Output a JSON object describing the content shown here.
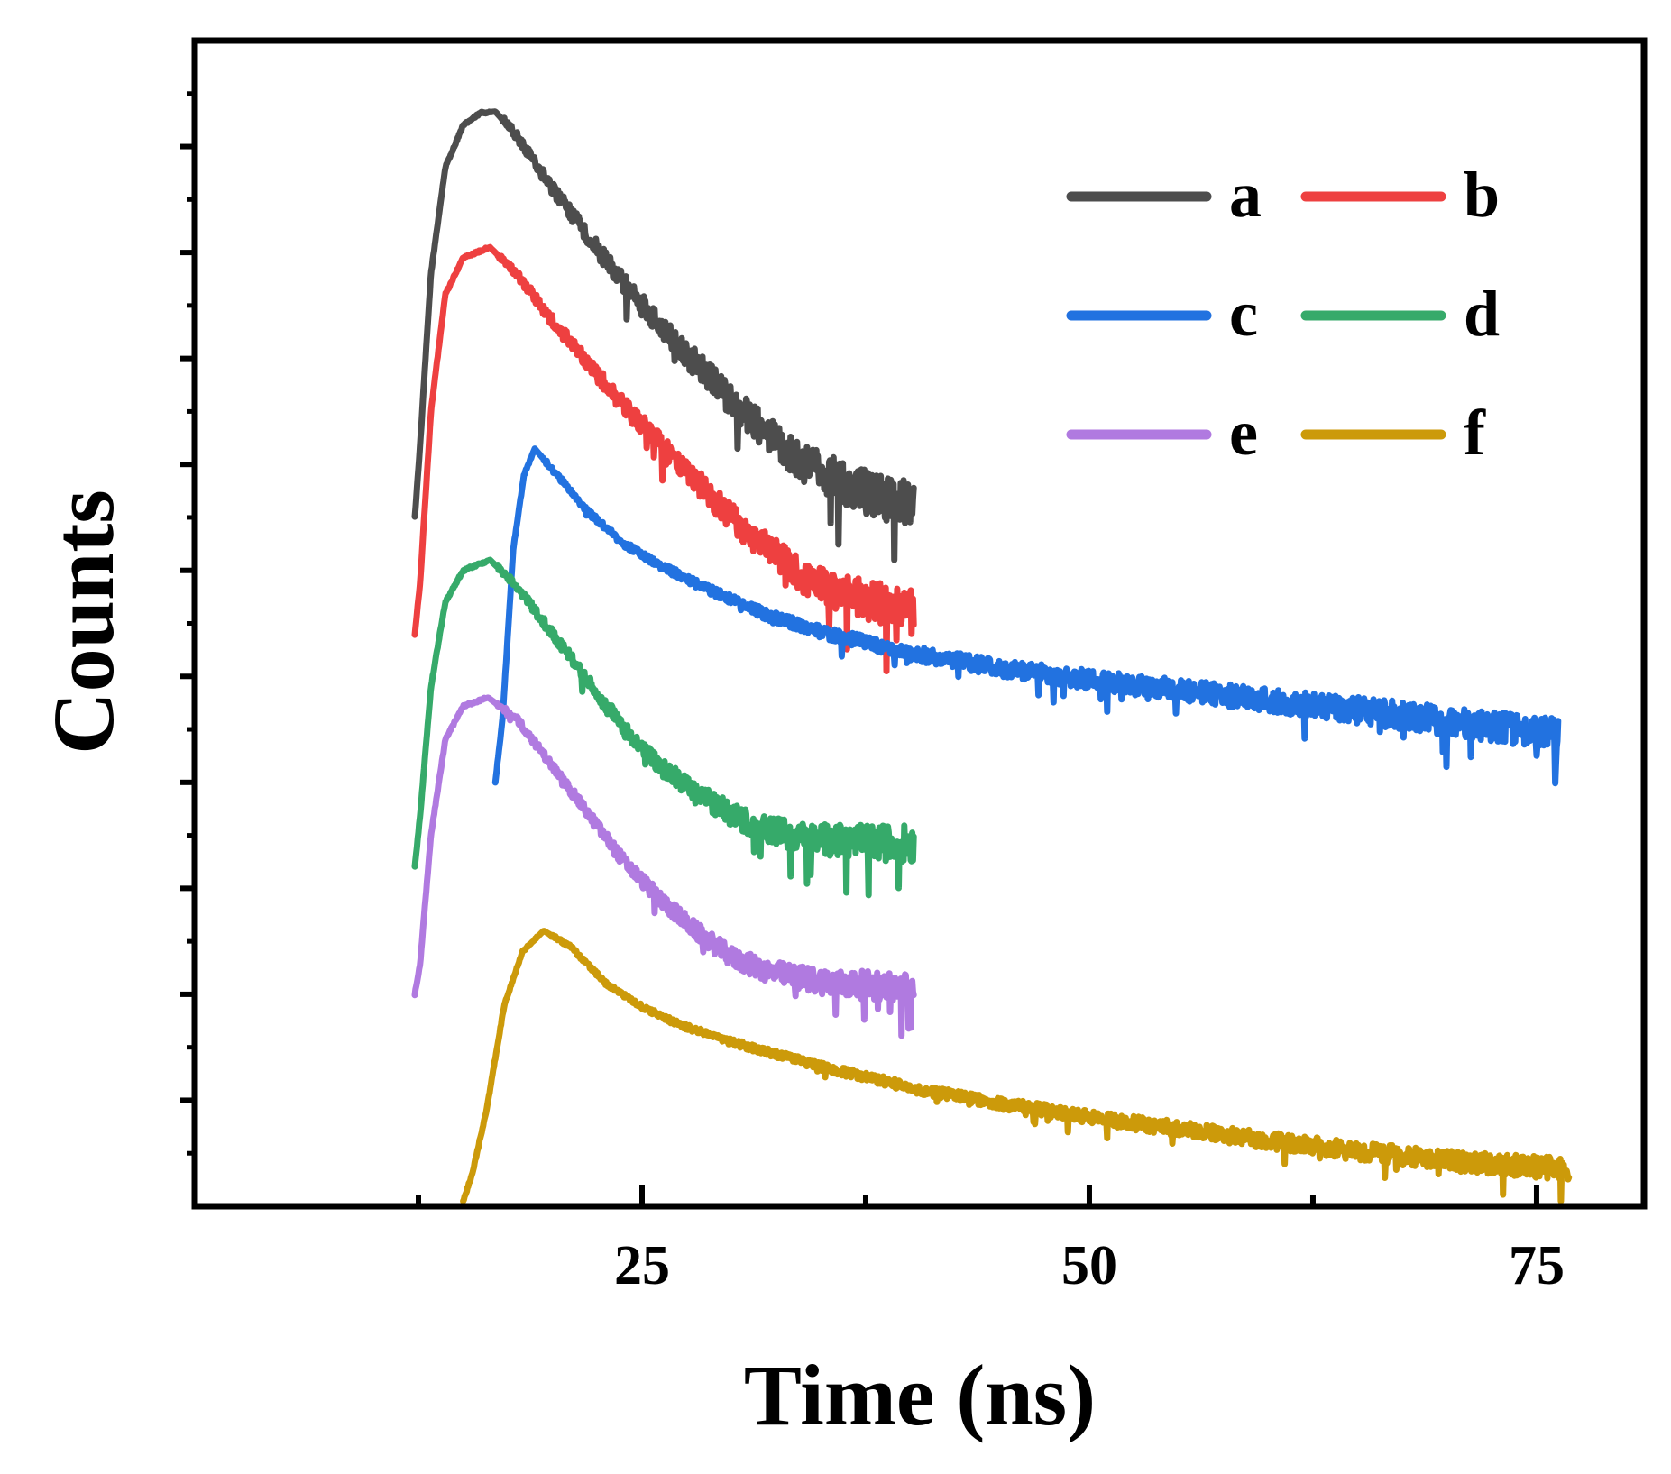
{
  "chart_data": {
    "type": "line",
    "title": "",
    "xlabel": "Time (ns)",
    "ylabel": "Counts",
    "xlim": [
      0,
      81
    ],
    "ylim": [
      0,
      11
    ],
    "xticks": [
      25,
      50,
      75
    ],
    "xtick_labels": [
      "25",
      "50",
      "75"
    ],
    "yticks_unlabeled": [
      1,
      2,
      3,
      4,
      5,
      6,
      7,
      8,
      9,
      10
    ],
    "grid": false,
    "legend": {
      "placement": "top-right",
      "columns": 2
    },
    "series": [
      {
        "name": "a",
        "color": "#4d4d4d",
        "peak": [
          16.8,
          10.3
        ],
        "end_x": 40.2,
        "noise": 0.16,
        "points": [
          [
            12.3,
            6.5
          ],
          [
            12.6,
            7.2
          ],
          [
            13.2,
            8.8
          ],
          [
            14.0,
            9.8
          ],
          [
            15.0,
            10.2
          ],
          [
            16.0,
            10.32
          ],
          [
            16.8,
            10.33
          ],
          [
            18.0,
            10.1
          ],
          [
            20.0,
            9.6
          ],
          [
            22.0,
            9.15
          ],
          [
            24.0,
            8.7
          ],
          [
            26.0,
            8.3
          ],
          [
            28.0,
            7.95
          ],
          [
            30.0,
            7.6
          ],
          [
            32.0,
            7.3
          ],
          [
            34.0,
            7.0
          ],
          [
            36.0,
            6.85
          ],
          [
            38.0,
            6.7
          ],
          [
            40.2,
            6.6
          ]
        ]
      },
      {
        "name": "b",
        "color": "#ee4040",
        "peak": [
          16.5,
          9.05
        ],
        "end_x": 40.2,
        "noise": 0.14,
        "points": [
          [
            12.3,
            5.4
          ],
          [
            12.6,
            5.9
          ],
          [
            13.2,
            7.5
          ],
          [
            14.0,
            8.6
          ],
          [
            15.0,
            8.95
          ],
          [
            16.5,
            9.05
          ],
          [
            18.0,
            8.8
          ],
          [
            20.0,
            8.35
          ],
          [
            22.0,
            7.95
          ],
          [
            24.0,
            7.55
          ],
          [
            26.0,
            7.2
          ],
          [
            28.0,
            6.85
          ],
          [
            30.0,
            6.5
          ],
          [
            32.0,
            6.2
          ],
          [
            34.0,
            5.95
          ],
          [
            36.0,
            5.8
          ],
          [
            38.0,
            5.7
          ],
          [
            40.2,
            5.6
          ]
        ]
      },
      {
        "name": "c",
        "color": "#2272e0",
        "peak": [
          19.0,
          7.15
        ],
        "end_x": 76.2,
        "noise": 0.1,
        "points": [
          [
            16.8,
            4.0
          ],
          [
            17.2,
            4.6
          ],
          [
            17.8,
            6.2
          ],
          [
            18.4,
            6.9
          ],
          [
            19.0,
            7.15
          ],
          [
            20.0,
            6.95
          ],
          [
            22.0,
            6.55
          ],
          [
            24.0,
            6.25
          ],
          [
            26.0,
            6.05
          ],
          [
            28.0,
            5.88
          ],
          [
            30.0,
            5.72
          ],
          [
            32.0,
            5.58
          ],
          [
            35.0,
            5.42
          ],
          [
            40.0,
            5.22
          ],
          [
            45.0,
            5.08
          ],
          [
            50.0,
            4.97
          ],
          [
            55.0,
            4.87
          ],
          [
            60.0,
            4.78
          ],
          [
            65.0,
            4.68
          ],
          [
            70.0,
            4.58
          ],
          [
            76.2,
            4.45
          ]
        ]
      },
      {
        "name": "d",
        "color": "#36aa6a",
        "peak": [
          16.5,
          6.1
        ],
        "end_x": 40.2,
        "noise": 0.12,
        "points": [
          [
            12.3,
            3.2
          ],
          [
            12.6,
            3.7
          ],
          [
            13.2,
            4.9
          ],
          [
            14.0,
            5.7
          ],
          [
            15.0,
            6.0
          ],
          [
            16.5,
            6.1
          ],
          [
            18.0,
            5.85
          ],
          [
            20.0,
            5.4
          ],
          [
            22.0,
            4.95
          ],
          [
            24.0,
            4.5
          ],
          [
            26.0,
            4.15
          ],
          [
            28.0,
            3.9
          ],
          [
            30.0,
            3.7
          ],
          [
            32.0,
            3.55
          ],
          [
            34.0,
            3.48
          ],
          [
            36.0,
            3.45
          ],
          [
            38.0,
            3.43
          ],
          [
            40.2,
            3.42
          ]
        ]
      },
      {
        "name": "e",
        "color": "#b07ae0",
        "peak": [
          16.4,
          4.8
        ],
        "end_x": 40.2,
        "noise": 0.1,
        "points": [
          [
            12.3,
            2.0
          ],
          [
            12.6,
            2.3
          ],
          [
            13.2,
            3.5
          ],
          [
            14.0,
            4.4
          ],
          [
            15.0,
            4.72
          ],
          [
            16.4,
            4.8
          ],
          [
            18.0,
            4.6
          ],
          [
            20.0,
            4.15
          ],
          [
            22.0,
            3.7
          ],
          [
            24.0,
            3.25
          ],
          [
            26.0,
            2.9
          ],
          [
            28.0,
            2.6
          ],
          [
            30.0,
            2.35
          ],
          [
            32.0,
            2.22
          ],
          [
            34.0,
            2.15
          ],
          [
            36.0,
            2.1
          ],
          [
            38.0,
            2.08
          ],
          [
            40.2,
            2.05
          ]
        ]
      },
      {
        "name": "f",
        "color": "#cc9a0a",
        "peak": [
          19.5,
          2.6
        ],
        "end_x": 76.8,
        "noise": 0.07,
        "points": [
          [
            15.0,
            0.05
          ],
          [
            15.5,
            0.3
          ],
          [
            16.3,
            0.9
          ],
          [
            17.3,
            1.9
          ],
          [
            18.3,
            2.4
          ],
          [
            19.5,
            2.6
          ],
          [
            21.0,
            2.45
          ],
          [
            23.0,
            2.1
          ],
          [
            25.0,
            1.88
          ],
          [
            27.0,
            1.72
          ],
          [
            30.0,
            1.55
          ],
          [
            35.0,
            1.32
          ],
          [
            40.0,
            1.12
          ],
          [
            45.0,
            0.97
          ],
          [
            50.0,
            0.84
          ],
          [
            55.0,
            0.73
          ],
          [
            60.0,
            0.62
          ],
          [
            65.0,
            0.52
          ],
          [
            70.0,
            0.43
          ],
          [
            76.8,
            0.35
          ]
        ]
      }
    ]
  }
}
